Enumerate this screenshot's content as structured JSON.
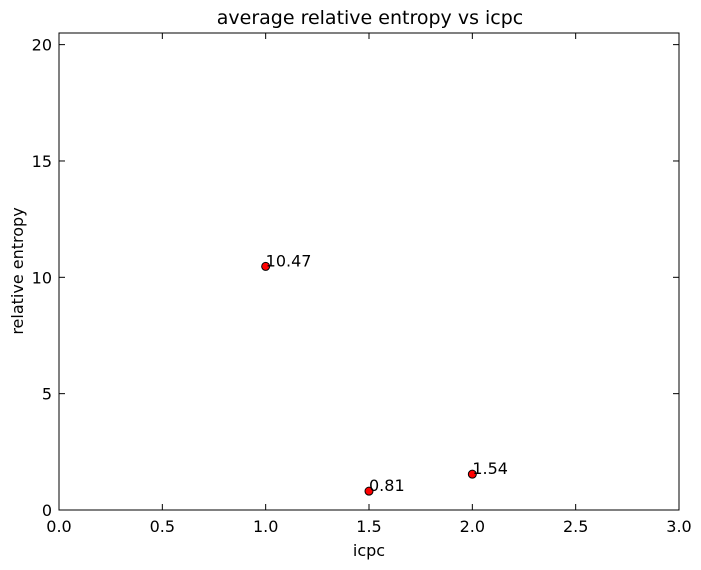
{
  "chart_data": {
    "type": "scatter",
    "title": "average relative entropy vs icpc",
    "xlabel": "icpc",
    "ylabel": "relative entropy",
    "xlim": [
      0.0,
      3.0
    ],
    "ylim": [
      0,
      20.5
    ],
    "xticks": [
      "0.0",
      "0.5",
      "1.0",
      "1.5",
      "2.0",
      "2.5",
      "3.0"
    ],
    "yticks": [
      "0",
      "5",
      "10",
      "15",
      "20"
    ],
    "grid": false,
    "point_color": "#ff0000",
    "points": [
      {
        "x": 1.0,
        "y": 10.47,
        "label": "10.47"
      },
      {
        "x": 1.5,
        "y": 0.81,
        "label": "0.81"
      },
      {
        "x": 2.0,
        "y": 1.54,
        "label": "1.54"
      }
    ]
  }
}
